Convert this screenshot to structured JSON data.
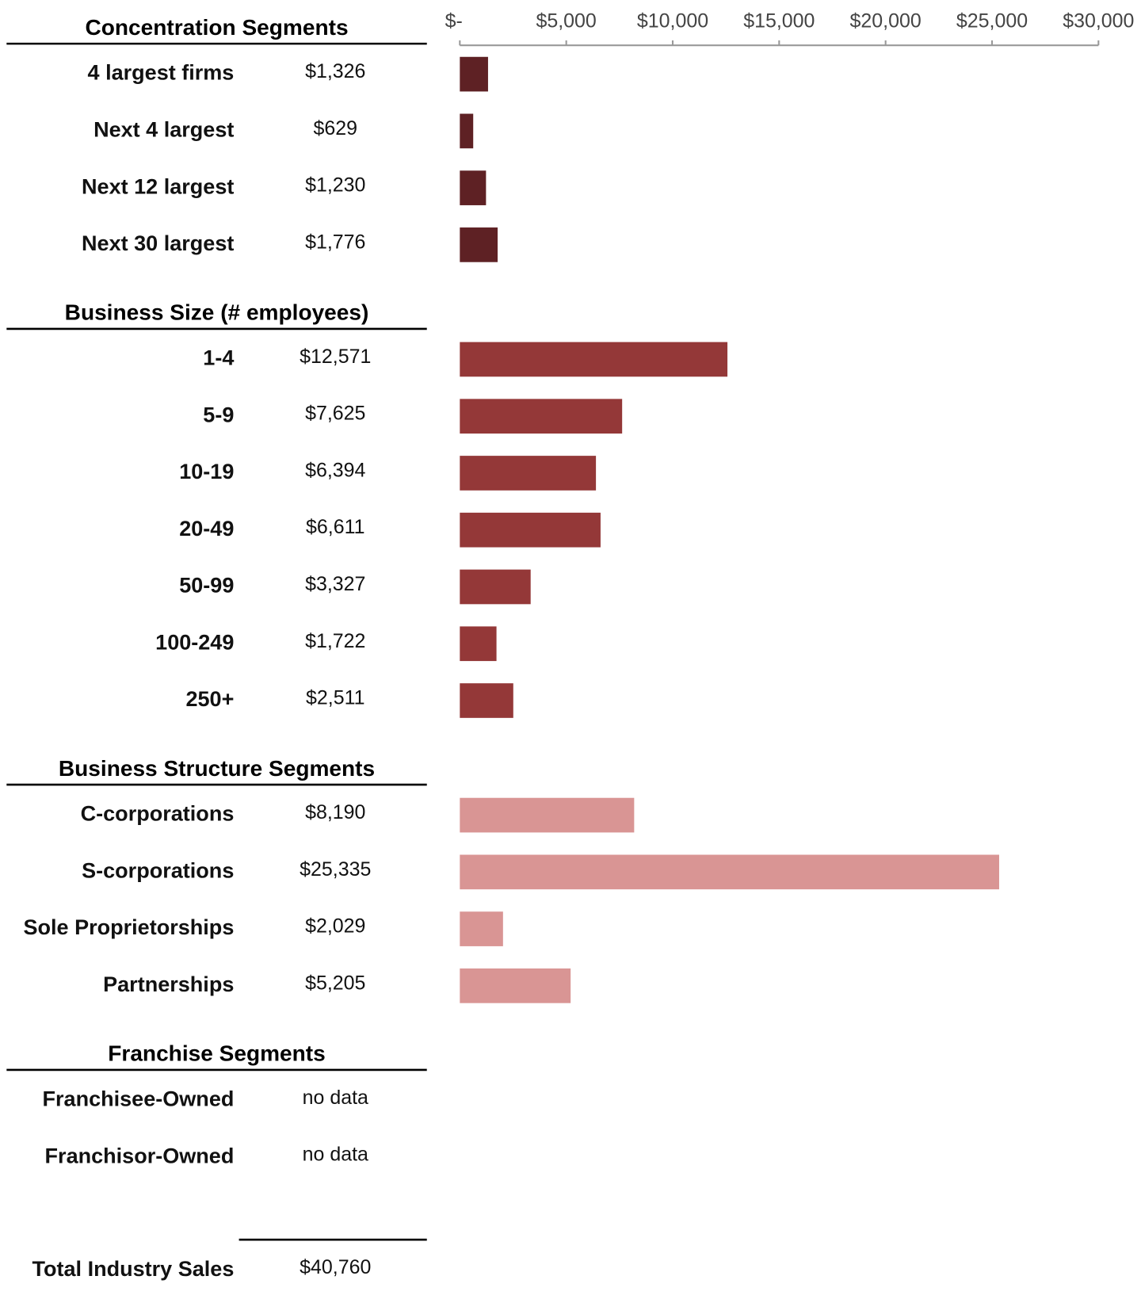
{
  "chart_data": {
    "type": "bar",
    "xlim": [
      0,
      30000
    ],
    "xticks": [
      {
        "value": 0,
        "label": "$-"
      },
      {
        "value": 5000,
        "label": "$5,000"
      },
      {
        "value": 10000,
        "label": "$10,000"
      },
      {
        "value": 15000,
        "label": "$15,000"
      },
      {
        "value": 20000,
        "label": "$20,000"
      },
      {
        "value": 25000,
        "label": "$25,000"
      },
      {
        "value": 30000,
        "label": "$30,000"
      }
    ],
    "sections": [
      {
        "title": "Concentration Segments",
        "color": "#5e2124",
        "categories": [
          "4 largest firms",
          "Next 4 largest",
          "Next 12 largest",
          "Next 30 largest"
        ],
        "values": [
          1326,
          629,
          1230,
          1776
        ],
        "value_labels": [
          "$1,326",
          "$629",
          "$1,230",
          "$1,776"
        ]
      },
      {
        "title": "Business Size (# employees)",
        "color": "#943838",
        "categories": [
          "1-4",
          "5-9",
          "10-19",
          "20-49",
          "50-99",
          "100-249",
          "250+"
        ],
        "values": [
          12571,
          7625,
          6394,
          6611,
          3327,
          1722,
          2511
        ],
        "value_labels": [
          "$12,571",
          "$7,625",
          "$6,394",
          "$6,611",
          "$3,327",
          "$1,722",
          "$2,511"
        ]
      },
      {
        "title": "Business Structure Segments",
        "color": "#d99594",
        "categories": [
          "C-corporations",
          "S-corporations",
          "Sole Proprietorships",
          "Partnerships"
        ],
        "values": [
          8190,
          25335,
          2029,
          5205
        ],
        "value_labels": [
          "$8,190",
          "$25,335",
          "$2,029",
          "$5,205"
        ]
      },
      {
        "title": "Franchise Segments",
        "color": "#d99594",
        "categories": [
          "Franchisee-Owned",
          "Franchisor-Owned"
        ],
        "values": [
          null,
          null
        ],
        "value_labels": [
          "no data",
          "no data"
        ]
      }
    ],
    "total": {
      "label": "Total Industry Sales",
      "value": 40760,
      "value_label": "$40,760"
    }
  }
}
